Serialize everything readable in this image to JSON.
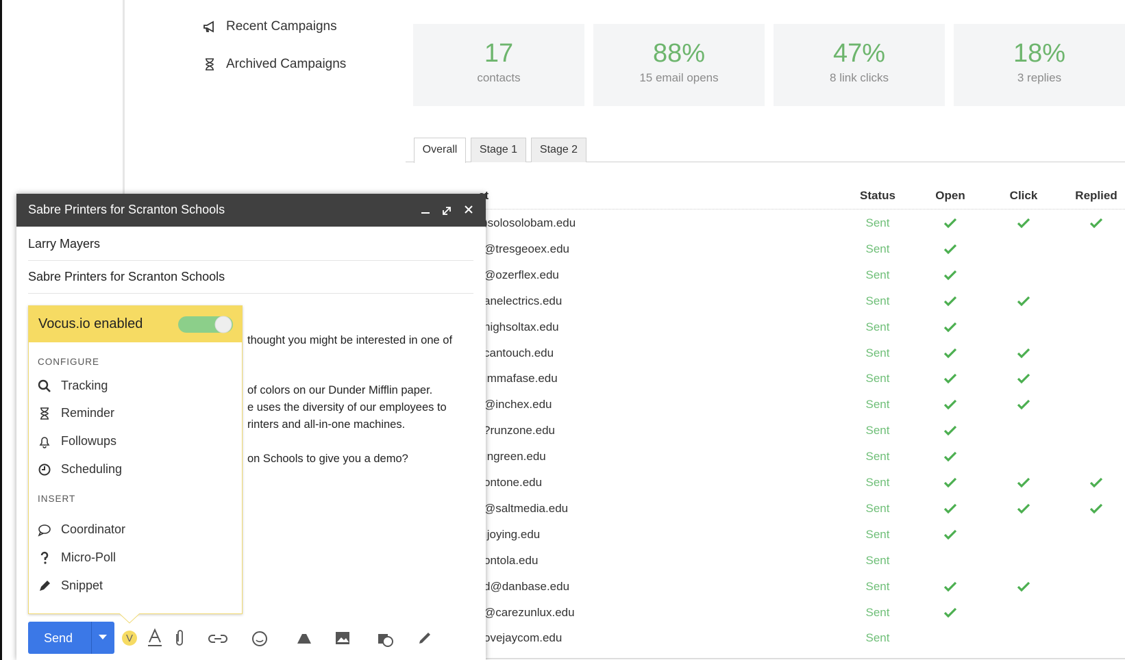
{
  "sidebar": {
    "items": [
      "Recent Campaigns",
      "Archived Campaigns"
    ]
  },
  "stats": [
    {
      "value": "17",
      "label": "contacts"
    },
    {
      "value": "88%",
      "label": "15 email opens"
    },
    {
      "value": "47%",
      "label": "8 link clicks"
    },
    {
      "value": "18%",
      "label": "3 replies"
    }
  ],
  "tabs": [
    "Overall",
    "Stage 1",
    "Stage 2"
  ],
  "table": {
    "columns": [
      "ct",
      "Status",
      "Open",
      "Click",
      "Replied"
    ],
    "rows": [
      {
        "contact": ")solosolobam.edu",
        "status": "Sent",
        "open": true,
        "click": true,
        "replied": true
      },
      {
        "contact": "@tresgeoex.edu",
        "status": "Sent",
        "open": true,
        "click": false,
        "replied": false
      },
      {
        "contact": "@ozerflex.edu",
        "status": "Sent",
        "open": true,
        "click": false,
        "replied": false
      },
      {
        "contact": "anelectrics.edu",
        "status": "Sent",
        "open": true,
        "click": true,
        "replied": false
      },
      {
        "contact": "highsoltax.edu",
        "status": "Sent",
        "open": true,
        "click": false,
        "replied": false
      },
      {
        "contact": "cantouch.edu",
        "status": "Sent",
        "open": true,
        "click": true,
        "replied": false
      },
      {
        "contact": "ımmafase.edu",
        "status": "Sent",
        "open": true,
        "click": true,
        "replied": false
      },
      {
        "contact": "@inchex.edu",
        "status": "Sent",
        "open": true,
        "click": true,
        "replied": false
      },
      {
        "contact": "?runzone.edu",
        "status": "Sent",
        "open": true,
        "click": false,
        "replied": false
      },
      {
        "contact": "ıngreen.edu",
        "status": "Sent",
        "open": true,
        "click": false,
        "replied": false
      },
      {
        "contact": "ontone.edu",
        "status": "Sent",
        "open": true,
        "click": true,
        "replied": true
      },
      {
        "contact": "@saltmedia.edu",
        "status": "Sent",
        "open": true,
        "click": true,
        "replied": true
      },
      {
        "contact": "ıjoying.edu",
        "status": "Sent",
        "open": true,
        "click": false,
        "replied": false
      },
      {
        "contact": "ontola.edu",
        "status": "Sent",
        "open": false,
        "click": false,
        "replied": false
      },
      {
        "contact": "d@danbase.edu",
        "status": "Sent",
        "open": true,
        "click": true,
        "replied": false
      },
      {
        "contact": "@carezunlux.edu",
        "status": "Sent",
        "open": true,
        "click": false,
        "replied": false
      },
      {
        "contact": "ovejaycom.edu",
        "status": "Sent",
        "open": false,
        "click": false,
        "replied": false
      }
    ]
  },
  "compose": {
    "title": "Sabre Printers for Scranton Schools",
    "to": "Larry Mayers",
    "subject": "Sabre Printers for Scranton Schools",
    "body": [
      "thought you might be interested in one of",
      "of colors on our Dunder Mifflin paper.",
      "e uses the diversity of our employees to",
      "rinters and all-in-one machines.",
      "on Schools to give you a demo?"
    ],
    "send": "Send",
    "panel": {
      "title": "Vocus.io enabled",
      "configure_label": "CONFIGURE",
      "configure": [
        "Tracking",
        "Reminder",
        "Followups",
        "Scheduling"
      ],
      "insert_label": "INSERT",
      "insert": [
        "Coordinator",
        "Micro-Poll",
        "Snippet"
      ]
    }
  }
}
